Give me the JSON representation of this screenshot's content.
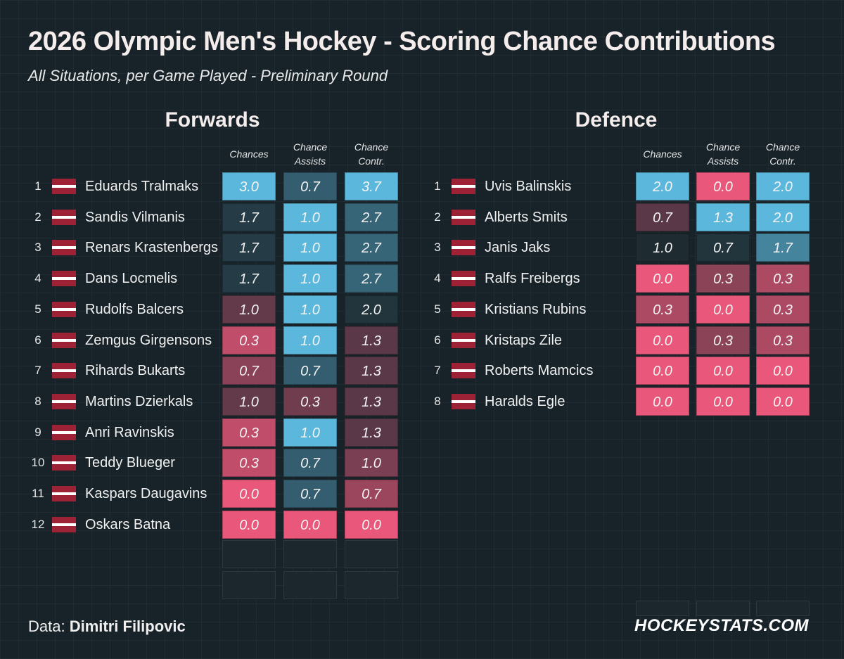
{
  "title": "2026 Olympic Men's Hockey - Scoring Chance Contributions",
  "subtitle": "All Situations, per Game Played - Preliminary Round",
  "colors": {
    "background": "#172329",
    "high": "#5bb8dc",
    "mid": "#1e2b31",
    "low": "#e9577a",
    "flag_red": "#9d2235"
  },
  "chart_data": [
    {
      "type": "table",
      "title": "Forwards",
      "columns": [
        "Chances",
        "Chance Assists",
        "Chance Contr."
      ],
      "rows": [
        {
          "rank": "1",
          "flag": "latvia-flag-icon",
          "name": "Eduards Tralmaks",
          "values": [
            "3.0",
            "0.7",
            "3.7"
          ]
        },
        {
          "rank": "2",
          "flag": "latvia-flag-icon",
          "name": "Sandis Vilmanis",
          "values": [
            "1.7",
            "1.0",
            "2.7"
          ]
        },
        {
          "rank": "3",
          "flag": "latvia-flag-icon",
          "name": "Renars Krastenbergs",
          "values": [
            "1.7",
            "1.0",
            "2.7"
          ]
        },
        {
          "rank": "4",
          "flag": "latvia-flag-icon",
          "name": "Dans Locmelis",
          "values": [
            "1.7",
            "1.0",
            "2.7"
          ]
        },
        {
          "rank": "5",
          "flag": "latvia-flag-icon",
          "name": "Rudolfs Balcers",
          "values": [
            "1.0",
            "1.0",
            "2.0"
          ]
        },
        {
          "rank": "6",
          "flag": "latvia-flag-icon",
          "name": "Zemgus Girgensons",
          "values": [
            "0.3",
            "1.0",
            "1.3"
          ]
        },
        {
          "rank": "7",
          "flag": "latvia-flag-icon",
          "name": "Rihards Bukarts",
          "values": [
            "0.7",
            "0.7",
            "1.3"
          ]
        },
        {
          "rank": "8",
          "flag": "latvia-flag-icon",
          "name": "Martins Dzierkals",
          "values": [
            "1.0",
            "0.3",
            "1.3"
          ]
        },
        {
          "rank": "9",
          "flag": "latvia-flag-icon",
          "name": "Anri Ravinskis",
          "values": [
            "0.3",
            "1.0",
            "1.3"
          ]
        },
        {
          "rank": "10",
          "flag": "latvia-flag-icon",
          "name": "Teddy Blueger",
          "values": [
            "0.3",
            "0.7",
            "1.0"
          ]
        },
        {
          "rank": "11",
          "flag": "latvia-flag-icon",
          "name": "Kaspars Daugavins",
          "values": [
            "0.0",
            "0.7",
            "0.7"
          ]
        },
        {
          "rank": "12",
          "flag": "latvia-flag-icon",
          "name": "Oskars Batna",
          "values": [
            "0.0",
            "0.0",
            "0.0"
          ]
        }
      ]
    },
    {
      "type": "table",
      "title": "Defence",
      "columns": [
        "Chances",
        "Chance Assists",
        "Chance Contr."
      ],
      "rows": [
        {
          "rank": "1",
          "flag": "latvia-flag-icon",
          "name": "Uvis Balinskis",
          "values": [
            "2.0",
            "0.0",
            "2.0"
          ]
        },
        {
          "rank": "2",
          "flag": "latvia-flag-icon",
          "name": "Alberts Smits",
          "values": [
            "0.7",
            "1.3",
            "2.0"
          ]
        },
        {
          "rank": "3",
          "flag": "latvia-flag-icon",
          "name": "Janis Jaks",
          "values": [
            "1.0",
            "0.7",
            "1.7"
          ]
        },
        {
          "rank": "4",
          "flag": "latvia-flag-icon",
          "name": "Ralfs Freibergs",
          "values": [
            "0.0",
            "0.3",
            "0.3"
          ]
        },
        {
          "rank": "5",
          "flag": "latvia-flag-icon",
          "name": "Kristians Rubins",
          "values": [
            "0.3",
            "0.0",
            "0.3"
          ]
        },
        {
          "rank": "6",
          "flag": "latvia-flag-icon",
          "name": "Kristaps Zile",
          "values": [
            "0.0",
            "0.3",
            "0.3"
          ]
        },
        {
          "rank": "7",
          "flag": "latvia-flag-icon",
          "name": "Roberts Mamcics",
          "values": [
            "0.0",
            "0.0",
            "0.0"
          ]
        },
        {
          "rank": "8",
          "flag": "latvia-flag-icon",
          "name": "Haralds Egle",
          "values": [
            "0.0",
            "0.0",
            "0.0"
          ]
        }
      ]
    }
  ],
  "footer": {
    "data_label": "Data:",
    "data_source": "Dimitri Filipovic",
    "brand": "HOCKEYSTATS.COM"
  }
}
